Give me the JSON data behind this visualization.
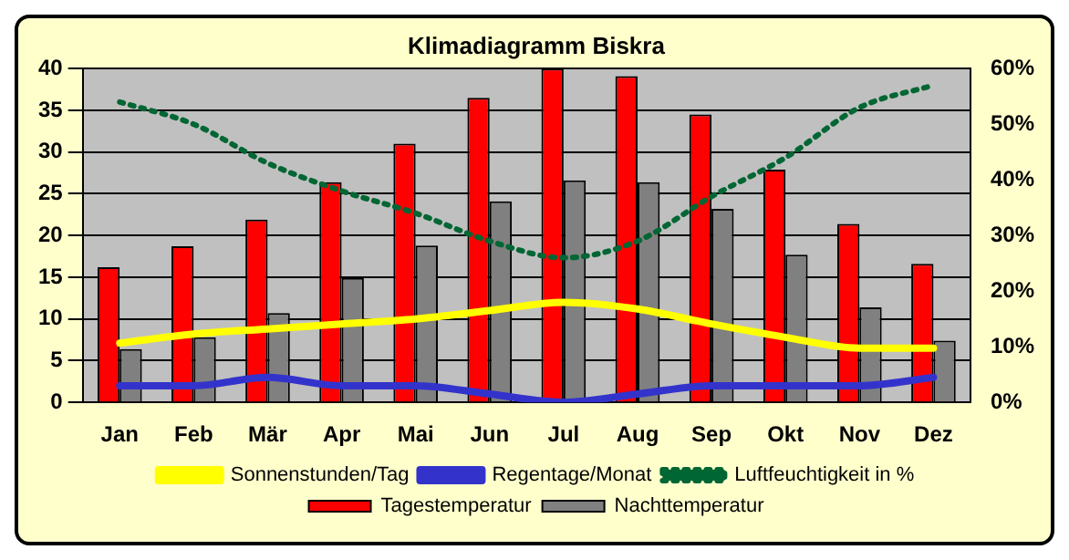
{
  "chart_data": {
    "type": "bar",
    "title": "Klimadiagramm Biskra",
    "categories": [
      "Jan",
      "Feb",
      "Mär",
      "Apr",
      "Mai",
      "Jun",
      "Jul",
      "Aug",
      "Sep",
      "Okt",
      "Nov",
      "Dez"
    ],
    "series": [
      {
        "name": "Tagestemperatur",
        "color": "#ff0000",
        "values": [
          16.2,
          18.7,
          21.9,
          26.4,
          31,
          36.5,
          40,
          39.1,
          34.5,
          27.9,
          21.4,
          16.6
        ]
      },
      {
        "name": "Nachttemperatur",
        "color": "#808080",
        "values": [
          6.4,
          7.8,
          10.7,
          14.9,
          18.8,
          24.1,
          26.6,
          26.4,
          23.2,
          17.7,
          11.4,
          7.4
        ]
      },
      {
        "name": "Sonnenstunden/Tag",
        "type": "line",
        "color": "#ffff00",
        "values": [
          7.1,
          8.2,
          8.8,
          9.4,
          10,
          11,
          12,
          11.2,
          9.4,
          7.8,
          6.5,
          6.5
        ]
      },
      {
        "name": "Regentage/Monat",
        "type": "line",
        "color": "#3333cc",
        "values": [
          2,
          2,
          3,
          2,
          2,
          1,
          0,
          1,
          2,
          2,
          2,
          3
        ]
      },
      {
        "name": "Luftfeuchtigkeit in %",
        "type": "line",
        "axis": "y2",
        "color": "#006633",
        "line_style": "dotted",
        "values": [
          54,
          50,
          43,
          38,
          34,
          29,
          26,
          29,
          37,
          44,
          53,
          57
        ]
      }
    ],
    "ylim": [
      0,
      40
    ],
    "yticks": [
      0,
      5,
      10,
      15,
      20,
      25,
      30,
      35,
      40
    ],
    "y2lim": [
      0,
      60
    ],
    "y2ticks": [
      {
        "value": 0,
        "label": "0%"
      },
      {
        "value": 10,
        "label": "10%"
      },
      {
        "value": 20,
        "label": "20%"
      },
      {
        "value": 30,
        "label": "30%"
      },
      {
        "value": 40,
        "label": "40%"
      },
      {
        "value": 50,
        "label": "50%"
      },
      {
        "value": 60,
        "label": "60%"
      }
    ],
    "grid": "y",
    "legend": "bottom",
    "marker": "none"
  }
}
